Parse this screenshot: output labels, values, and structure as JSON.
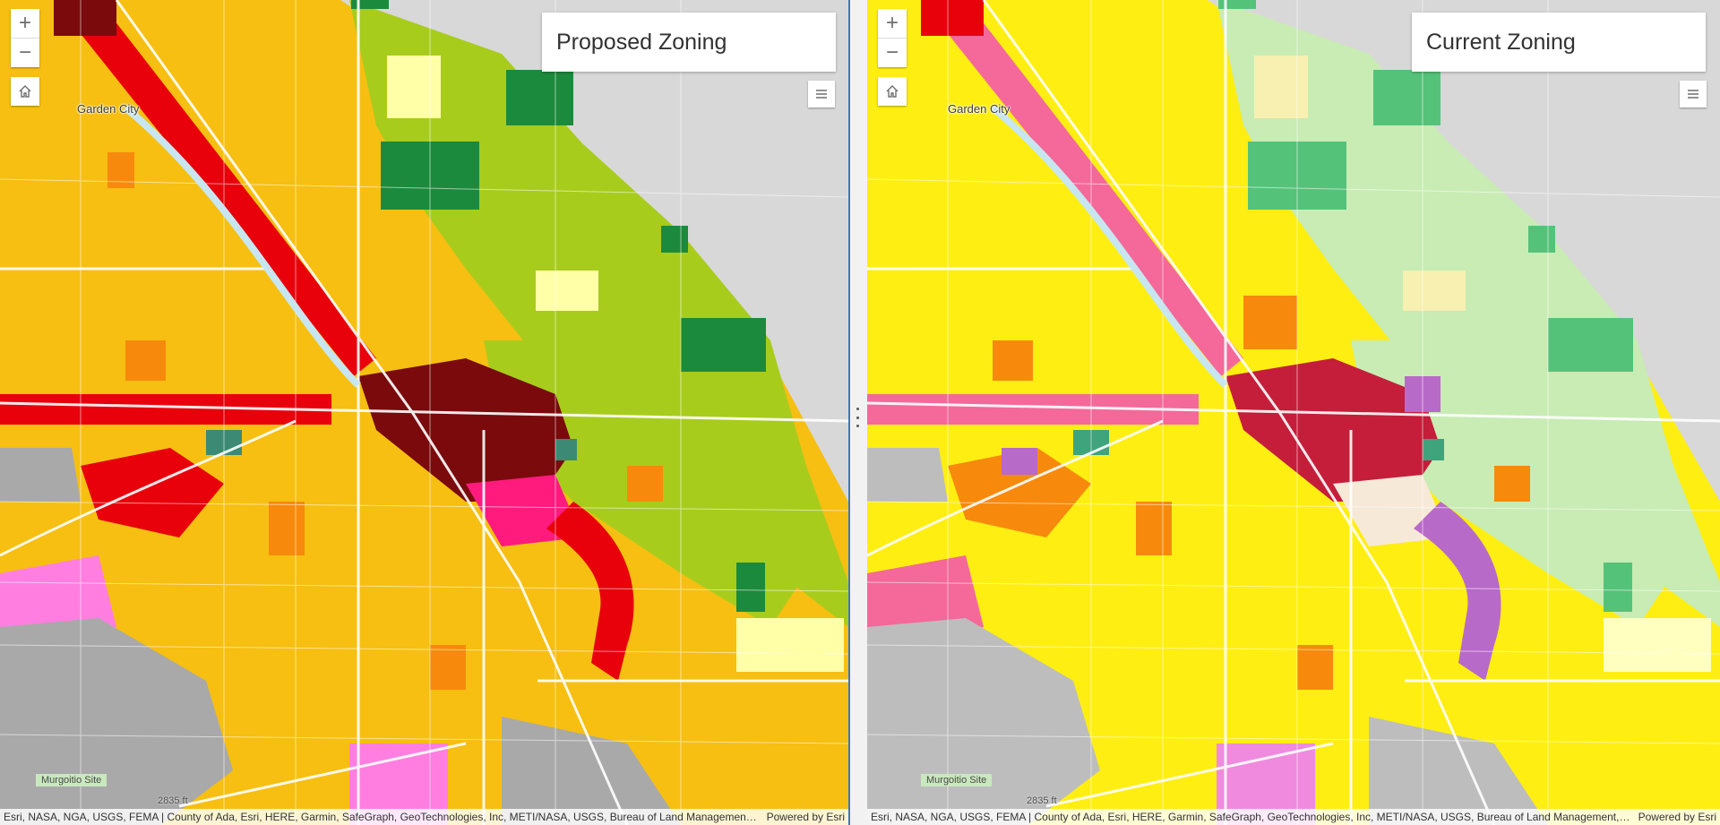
{
  "left_map": {
    "title": "Proposed Zoning",
    "zoom_in": "+",
    "zoom_out": "−",
    "labels": {
      "garden_city": "Garden City",
      "murgoitio": "Murgoitio Site",
      "elevation": "2835 ft"
    },
    "attribution": "Esri, NASA, NGA, USGS, FEMA | County of Ada, Esri, HERE, Garmin, SafeGraph, GeoTechnologies, Inc, METI/NASA, USGS, Bureau of Land Management, E...",
    "powered_by": "Powered by Esri",
    "colors": {
      "base": "#f6bf11",
      "low": "#ffd200",
      "high": "#e8000b",
      "downtown": "#7a0a0c",
      "green_light": "#a8cc1c",
      "green_dark": "#1c8a3c",
      "teal": "#3c8a74",
      "pink": "#ff5ad2",
      "gray": "#a9a9a9"
    }
  },
  "right_map": {
    "title": "Current Zoning",
    "zoom_in": "+",
    "zoom_out": "−",
    "labels": {
      "garden_city": "Garden City",
      "murgoitio": "Murgoitio Site",
      "elevation": "2835 ft"
    },
    "attribution": "Esri, NASA, NGA, USGS, FEMA | County of Ada, Esri, HERE, Garmin, SafeGraph, GeoTechnologies, Inc, METI/NASA, USGS, Bureau of Land Management, E...",
    "powered_by": "Powered by Esri",
    "colors": {
      "base": "#ffee12",
      "low": "#ffff2e",
      "high": "#f4689a",
      "downtown": "#c41e3a",
      "green_light": "#c8ecb4",
      "green_dark": "#55c27a",
      "teal": "#3fa37c",
      "purple": "#b86ac8",
      "gray": "#bdbdbd"
    }
  }
}
